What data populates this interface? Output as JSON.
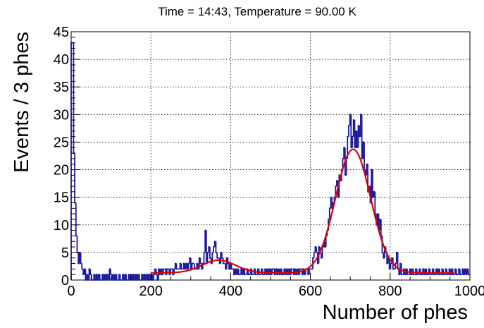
{
  "chart_data": {
    "type": "histogram",
    "title": "Time = 14:43, Temperature = 90.00 K",
    "xlabel": "Number of phes",
    "ylabel": "Events / 3 phes",
    "xlim": [
      0,
      1000
    ],
    "ylim": [
      0,
      45
    ],
    "x_ticks": [
      0,
      200,
      400,
      600,
      800,
      1000
    ],
    "x_tick_labels": [
      "0",
      "200",
      "400",
      "600",
      "800",
      "1000"
    ],
    "y_ticks": [
      0,
      5,
      10,
      15,
      20,
      25,
      30,
      35,
      40,
      45
    ],
    "y_tick_labels": [
      "0",
      "5",
      "10",
      "15",
      "20",
      "25",
      "30",
      "35",
      "40",
      "45"
    ],
    "grid": true,
    "bin_width": 3,
    "histogram_color": "#1a1a9c",
    "fit_color": "#e60000",
    "histogram_bins": [
      [
        0,
        43
      ],
      [
        3,
        43
      ],
      [
        6,
        23
      ],
      [
        9,
        14
      ],
      [
        12,
        8
      ],
      [
        15,
        5
      ],
      [
        18,
        3
      ],
      [
        21,
        5
      ],
      [
        24,
        3
      ],
      [
        27,
        2
      ],
      [
        30,
        1
      ],
      [
        33,
        2
      ],
      [
        36,
        0
      ],
      [
        39,
        1
      ],
      [
        42,
        0
      ],
      [
        45,
        2
      ],
      [
        48,
        1
      ],
      [
        51,
        0
      ],
      [
        54,
        0
      ],
      [
        57,
        1
      ],
      [
        60,
        0
      ],
      [
        63,
        1
      ],
      [
        66,
        0
      ],
      [
        69,
        1
      ],
      [
        72,
        0
      ],
      [
        75,
        0
      ],
      [
        78,
        1
      ],
      [
        81,
        0
      ],
      [
        84,
        1
      ],
      [
        87,
        0
      ],
      [
        90,
        1
      ],
      [
        93,
        0
      ],
      [
        96,
        2
      ],
      [
        99,
        1
      ],
      [
        102,
        0
      ],
      [
        105,
        1
      ],
      [
        108,
        0
      ],
      [
        111,
        1
      ],
      [
        114,
        0
      ],
      [
        117,
        0
      ],
      [
        120,
        1
      ],
      [
        123,
        0
      ],
      [
        126,
        0
      ],
      [
        129,
        1
      ],
      [
        132,
        0
      ],
      [
        135,
        1
      ],
      [
        138,
        0
      ],
      [
        141,
        0
      ],
      [
        144,
        1
      ],
      [
        147,
        0
      ],
      [
        150,
        1
      ],
      [
        153,
        0
      ],
      [
        156,
        1
      ],
      [
        159,
        0
      ],
      [
        162,
        1
      ],
      [
        165,
        0
      ],
      [
        168,
        1
      ],
      [
        171,
        0
      ],
      [
        174,
        0
      ],
      [
        177,
        1
      ],
      [
        180,
        0
      ],
      [
        183,
        1
      ],
      [
        186,
        0
      ],
      [
        189,
        1
      ],
      [
        192,
        0
      ],
      [
        195,
        1
      ],
      [
        198,
        0
      ],
      [
        201,
        1
      ],
      [
        204,
        0
      ],
      [
        207,
        1
      ],
      [
        210,
        2
      ],
      [
        213,
        1
      ],
      [
        216,
        0
      ],
      [
        219,
        2
      ],
      [
        222,
        1
      ],
      [
        225,
        2
      ],
      [
        228,
        1
      ],
      [
        231,
        2
      ],
      [
        234,
        2
      ],
      [
        237,
        1
      ],
      [
        240,
        2
      ],
      [
        243,
        2
      ],
      [
        246,
        1
      ],
      [
        249,
        2
      ],
      [
        252,
        2
      ],
      [
        255,
        1
      ],
      [
        258,
        2
      ],
      [
        261,
        3
      ],
      [
        264,
        2
      ],
      [
        267,
        2
      ],
      [
        270,
        2
      ],
      [
        273,
        3
      ],
      [
        276,
        2
      ],
      [
        279,
        2
      ],
      [
        282,
        3
      ],
      [
        285,
        2
      ],
      [
        288,
        3
      ],
      [
        291,
        2
      ],
      [
        294,
        3
      ],
      [
        297,
        4
      ],
      [
        300,
        2
      ],
      [
        303,
        3
      ],
      [
        306,
        3
      ],
      [
        309,
        2
      ],
      [
        312,
        2
      ],
      [
        315,
        3
      ],
      [
        318,
        2
      ],
      [
        321,
        4
      ],
      [
        324,
        3
      ],
      [
        327,
        2
      ],
      [
        330,
        3
      ],
      [
        333,
        5
      ],
      [
        336,
        9
      ],
      [
        339,
        3
      ],
      [
        342,
        5
      ],
      [
        345,
        6
      ],
      [
        348,
        4
      ],
      [
        351,
        3
      ],
      [
        354,
        5
      ],
      [
        357,
        6
      ],
      [
        360,
        7
      ],
      [
        363,
        5
      ],
      [
        366,
        4
      ],
      [
        369,
        4
      ],
      [
        372,
        3
      ],
      [
        375,
        5
      ],
      [
        378,
        4
      ],
      [
        381,
        3
      ],
      [
        384,
        3
      ],
      [
        387,
        2
      ],
      [
        390,
        4
      ],
      [
        393,
        3
      ],
      [
        396,
        2
      ],
      [
        399,
        3
      ],
      [
        402,
        2
      ],
      [
        405,
        2
      ],
      [
        408,
        1
      ],
      [
        411,
        2
      ],
      [
        414,
        1
      ],
      [
        417,
        2
      ],
      [
        420,
        1
      ],
      [
        423,
        1
      ],
      [
        426,
        2
      ],
      [
        429,
        1
      ],
      [
        432,
        2
      ],
      [
        435,
        1
      ],
      [
        438,
        1
      ],
      [
        441,
        2
      ],
      [
        444,
        1
      ],
      [
        447,
        1
      ],
      [
        450,
        2
      ],
      [
        453,
        1
      ],
      [
        456,
        1
      ],
      [
        459,
        2
      ],
      [
        462,
        1
      ],
      [
        465,
        1
      ],
      [
        468,
        2
      ],
      [
        471,
        1
      ],
      [
        474,
        1
      ],
      [
        477,
        2
      ],
      [
        480,
        1
      ],
      [
        483,
        1
      ],
      [
        486,
        2
      ],
      [
        489,
        1
      ],
      [
        492,
        2
      ],
      [
        495,
        1
      ],
      [
        498,
        2
      ],
      [
        501,
        1
      ],
      [
        504,
        2
      ],
      [
        507,
        2
      ],
      [
        510,
        1
      ],
      [
        513,
        2
      ],
      [
        516,
        1
      ],
      [
        519,
        2
      ],
      [
        522,
        1
      ],
      [
        525,
        2
      ],
      [
        528,
        1
      ],
      [
        531,
        1
      ],
      [
        534,
        2
      ],
      [
        537,
        1
      ],
      [
        540,
        2
      ],
      [
        543,
        1
      ],
      [
        546,
        2
      ],
      [
        549,
        1
      ],
      [
        552,
        2
      ],
      [
        555,
        2
      ],
      [
        558,
        1
      ],
      [
        561,
        2
      ],
      [
        564,
        1
      ],
      [
        567,
        2
      ],
      [
        570,
        1
      ],
      [
        573,
        2
      ],
      [
        576,
        2
      ],
      [
        579,
        1
      ],
      [
        582,
        2
      ],
      [
        585,
        1
      ],
      [
        588,
        2
      ],
      [
        591,
        2
      ],
      [
        594,
        1
      ],
      [
        597,
        2
      ],
      [
        600,
        2
      ],
      [
        603,
        2
      ],
      [
        606,
        4
      ],
      [
        609,
        5
      ],
      [
        612,
        6
      ],
      [
        615,
        5
      ],
      [
        618,
        3
      ],
      [
        621,
        6
      ],
      [
        624,
        5
      ],
      [
        627,
        4
      ],
      [
        630,
        6
      ],
      [
        633,
        7
      ],
      [
        636,
        6
      ],
      [
        639,
        8
      ],
      [
        642,
        9
      ],
      [
        645,
        11
      ],
      [
        648,
        13
      ],
      [
        651,
        15
      ],
      [
        654,
        13
      ],
      [
        657,
        14
      ],
      [
        660,
        15
      ],
      [
        663,
        17
      ],
      [
        666,
        18
      ],
      [
        669,
        15
      ],
      [
        672,
        19
      ],
      [
        675,
        18
      ],
      [
        678,
        20
      ],
      [
        681,
        22
      ],
      [
        684,
        24
      ],
      [
        687,
        19
      ],
      [
        690,
        22
      ],
      [
        693,
        26
      ],
      [
        696,
        28
      ],
      [
        699,
        30
      ],
      [
        702,
        24
      ],
      [
        705,
        26
      ],
      [
        708,
        29
      ],
      [
        711,
        24
      ],
      [
        714,
        27
      ],
      [
        717,
        24
      ],
      [
        720,
        28
      ],
      [
        723,
        26
      ],
      [
        726,
        30
      ],
      [
        729,
        22
      ],
      [
        732,
        25
      ],
      [
        735,
        20
      ],
      [
        738,
        19
      ],
      [
        741,
        21
      ],
      [
        744,
        16
      ],
      [
        747,
        17
      ],
      [
        750,
        14
      ],
      [
        753,
        20
      ],
      [
        756,
        15
      ],
      [
        759,
        16
      ],
      [
        762,
        12
      ],
      [
        765,
        10
      ],
      [
        768,
        12
      ],
      [
        771,
        9
      ],
      [
        774,
        11
      ],
      [
        777,
        8
      ],
      [
        780,
        5
      ],
      [
        783,
        4
      ],
      [
        786,
        6
      ],
      [
        789,
        5
      ],
      [
        792,
        3
      ],
      [
        795,
        4
      ],
      [
        798,
        2
      ],
      [
        801,
        3
      ],
      [
        804,
        4
      ],
      [
        807,
        2
      ],
      [
        810,
        2
      ],
      [
        813,
        3
      ],
      [
        816,
        5
      ],
      [
        819,
        2
      ],
      [
        822,
        1
      ],
      [
        825,
        3
      ],
      [
        828,
        1
      ],
      [
        831,
        1
      ],
      [
        834,
        2
      ],
      [
        837,
        1
      ],
      [
        840,
        2
      ],
      [
        843,
        1
      ],
      [
        846,
        1
      ],
      [
        849,
        2
      ],
      [
        852,
        1
      ],
      [
        855,
        2
      ],
      [
        858,
        1
      ],
      [
        861,
        1
      ],
      [
        864,
        2
      ],
      [
        867,
        1
      ],
      [
        870,
        1
      ],
      [
        873,
        2
      ],
      [
        876,
        1
      ],
      [
        879,
        1
      ],
      [
        882,
        2
      ],
      [
        885,
        1
      ],
      [
        888,
        2
      ],
      [
        891,
        1
      ],
      [
        894,
        1
      ],
      [
        897,
        2
      ],
      [
        900,
        1
      ],
      [
        903,
        1
      ],
      [
        906,
        2
      ],
      [
        909,
        1
      ],
      [
        912,
        1
      ],
      [
        915,
        2
      ],
      [
        918,
        1
      ],
      [
        921,
        2
      ],
      [
        924,
        1
      ],
      [
        927,
        1
      ],
      [
        930,
        2
      ],
      [
        933,
        1
      ],
      [
        936,
        1
      ],
      [
        939,
        2
      ],
      [
        942,
        1
      ],
      [
        945,
        1
      ],
      [
        948,
        2
      ],
      [
        951,
        1
      ],
      [
        954,
        2
      ],
      [
        957,
        1
      ],
      [
        960,
        1
      ],
      [
        963,
        2
      ],
      [
        966,
        1
      ],
      [
        969,
        1
      ],
      [
        972,
        2
      ],
      [
        975,
        1
      ],
      [
        978,
        1
      ],
      [
        981,
        2
      ],
      [
        984,
        1
      ],
      [
        987,
        2
      ],
      [
        990,
        1
      ],
      [
        993,
        2
      ],
      [
        996,
        1
      ]
    ],
    "fit_curve": {
      "baseline": 1.3,
      "components": [
        {
          "amplitude": 2.3,
          "mean": 370,
          "sigma": 42
        },
        {
          "amplitude": 22.4,
          "mean": 707,
          "sigma": 44
        }
      ]
    }
  }
}
